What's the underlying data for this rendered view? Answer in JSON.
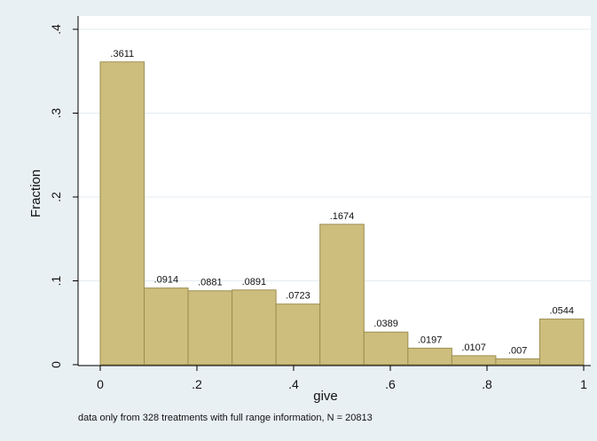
{
  "chart_data": {
    "type": "bar",
    "histogram": true,
    "xlabel": "give",
    "ylabel": "Fraction",
    "note": "data only from 328 treatments with full range information, N = 20813",
    "xlim": [
      0,
      1
    ],
    "ylim": [
      0,
      0.4
    ],
    "x_ticks": [
      0,
      0.2,
      0.4,
      0.6,
      0.8,
      1
    ],
    "x_tick_labels": [
      "0",
      ".2",
      ".4",
      ".6",
      ".8",
      "1"
    ],
    "y_ticks": [
      0,
      0.1,
      0.2,
      0.3,
      0.4
    ],
    "y_tick_labels": [
      "0",
      ".1",
      ".2",
      ".3",
      ".4"
    ],
    "bin_edges": [
      0,
      0.0909,
      0.1818,
      0.2727,
      0.3636,
      0.4545,
      0.5455,
      0.6364,
      0.7273,
      0.8182,
      0.9091,
      1
    ],
    "values": [
      0.3611,
      0.0914,
      0.0881,
      0.0891,
      0.0723,
      0.1674,
      0.0389,
      0.0197,
      0.0107,
      0.007,
      0.0544
    ],
    "value_labels": [
      ".3611",
      ".0914",
      ".0881",
      ".0891",
      ".0723",
      ".1674",
      ".0389",
      ".0197",
      ".0107",
      ".007",
      ".0544"
    ],
    "grid": true,
    "colors": {
      "bar_fill": "#cdbe7d",
      "bar_stroke": "#9c8e52",
      "plot_bg": "#ffffff",
      "outer_bg": "#e9f0f4",
      "grid": "#e3ecf1"
    }
  }
}
